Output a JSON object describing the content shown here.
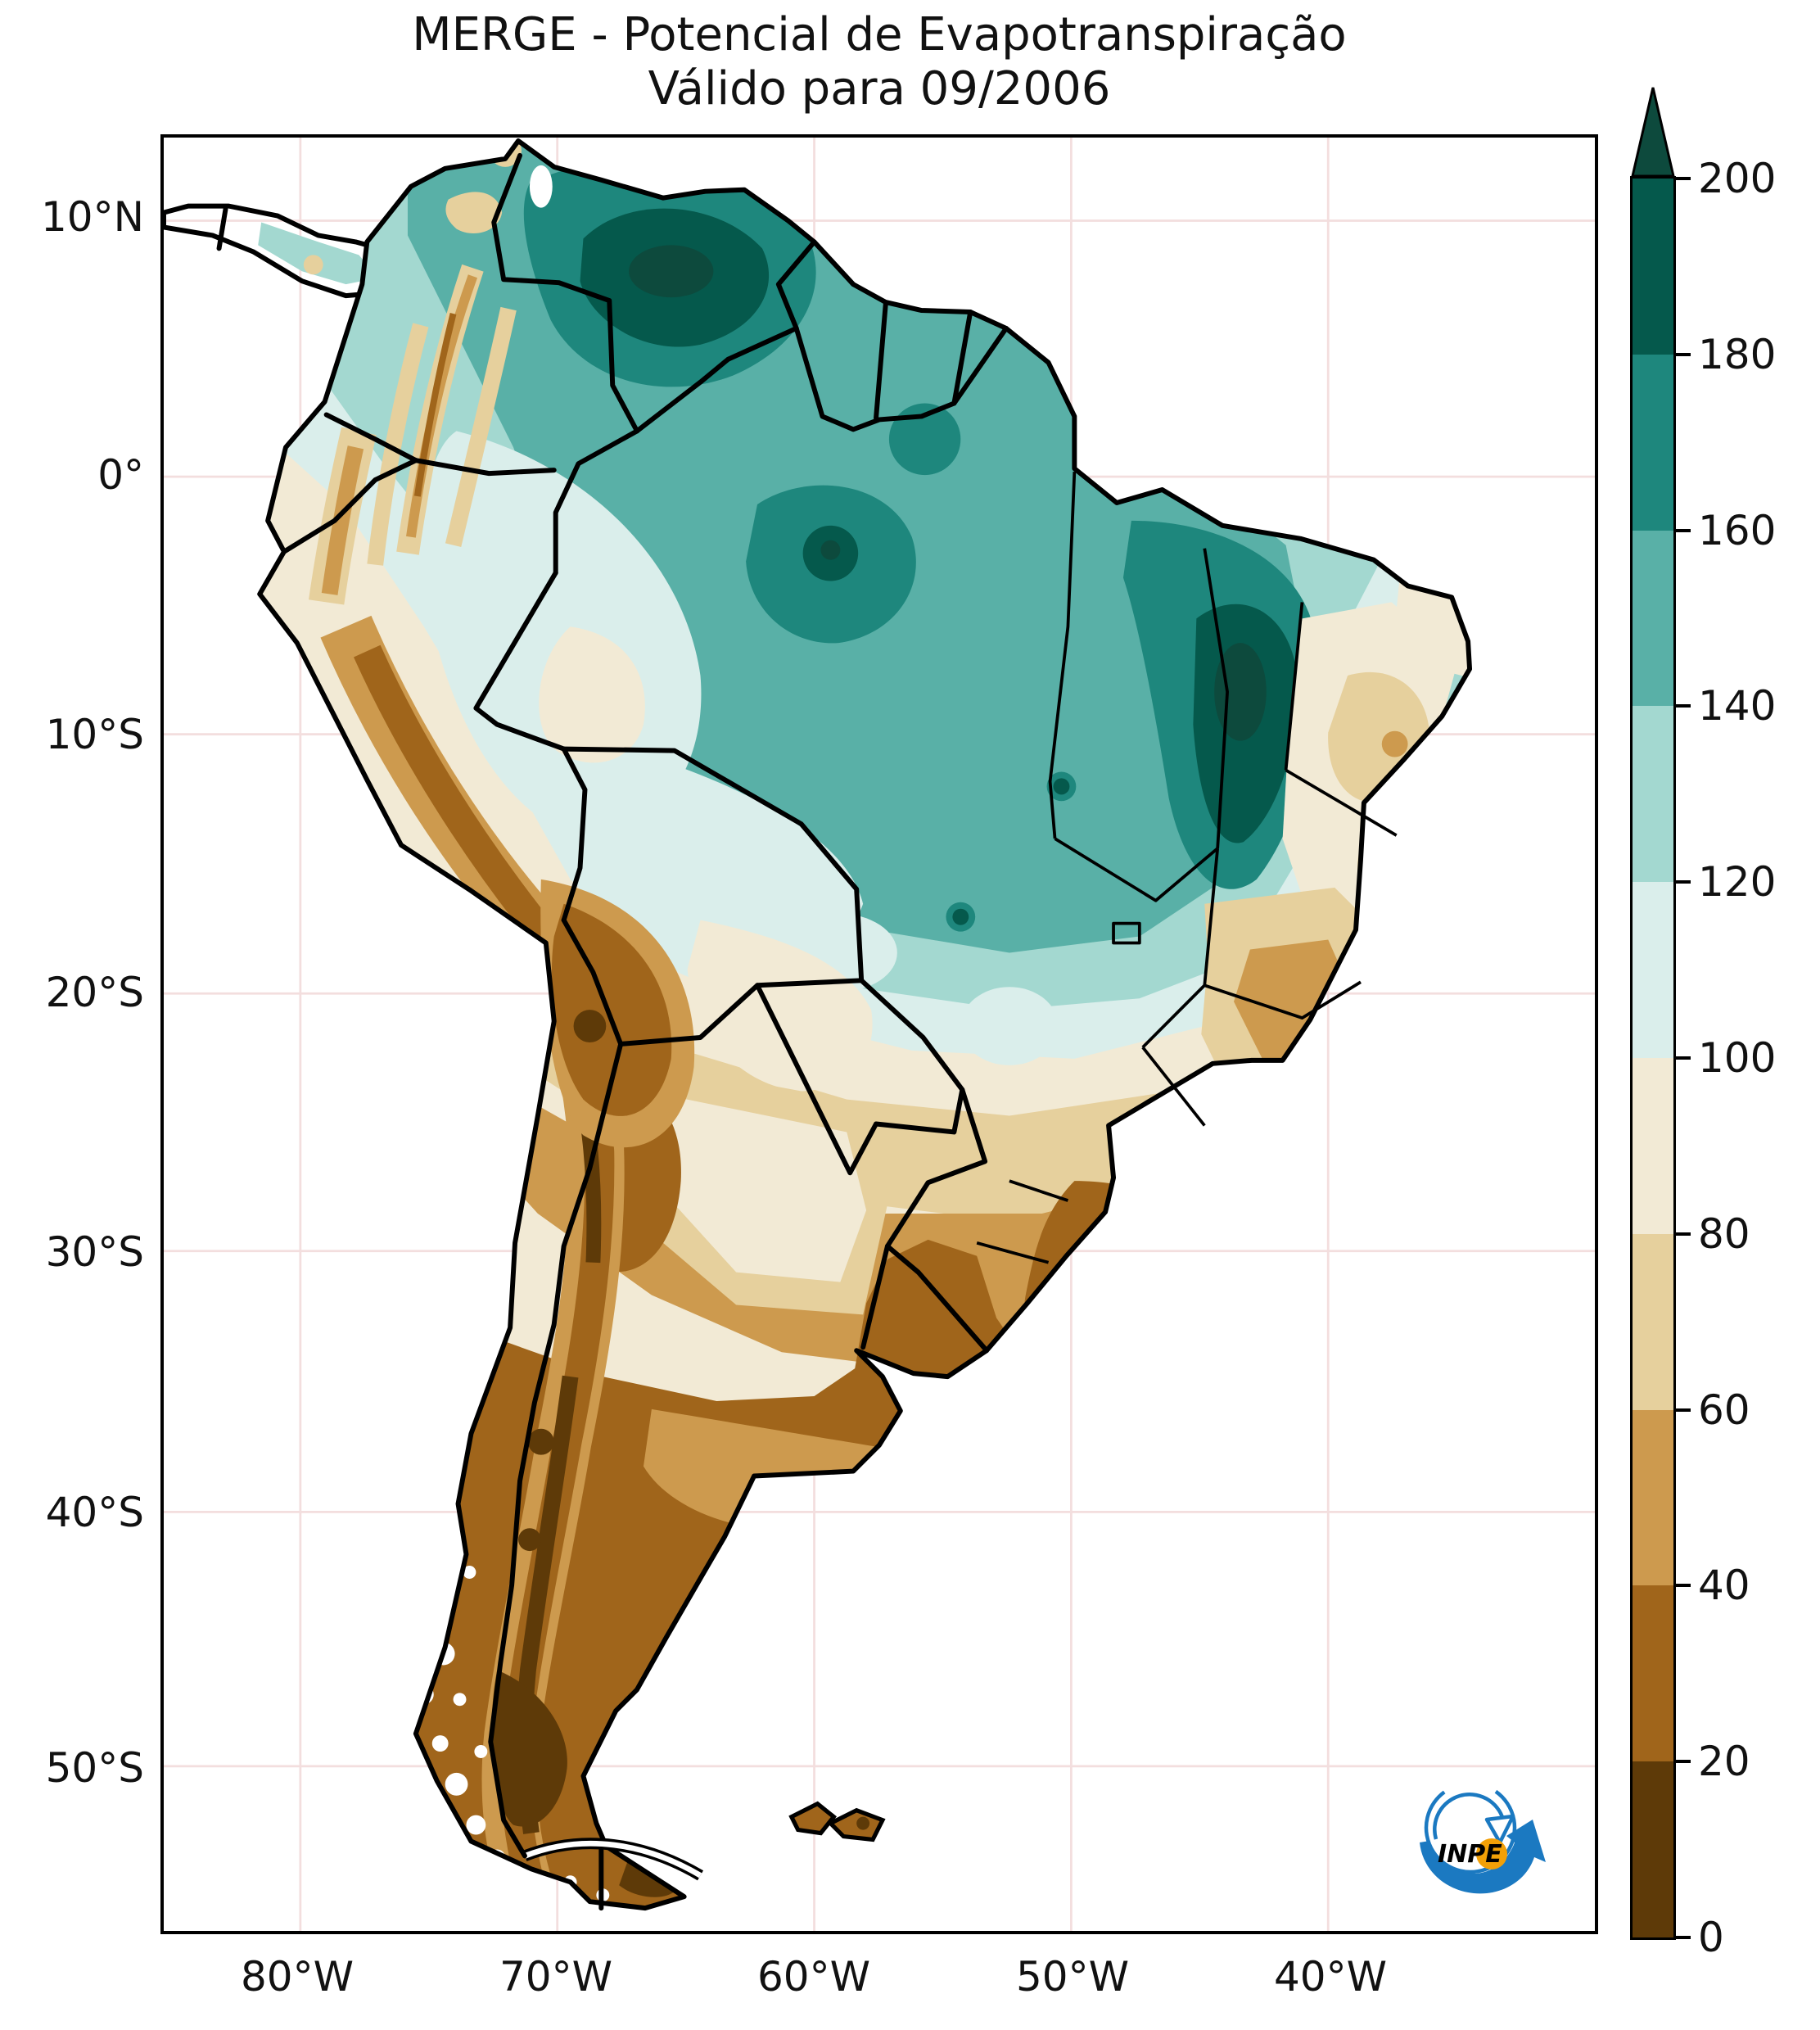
{
  "title": "MERGE - Potencial de Evapotranspiração",
  "subtitle": "Válido para 09/2006",
  "y_axis": {
    "ticks": [
      "10°N",
      "0°",
      "10°S",
      "20°S",
      "30°S",
      "40°S",
      "50°S"
    ]
  },
  "x_axis": {
    "ticks": [
      "80°W",
      "70°W",
      "60°W",
      "50°W",
      "40°W"
    ]
  },
  "colorbar": {
    "tick_labels": [
      "0",
      "20",
      "40",
      "60",
      "80",
      "100",
      "120",
      "140",
      "160",
      "180",
      "200"
    ]
  },
  "logo": {
    "label": "INPE",
    "blue": "#1b79c1",
    "orange": "#f2a007"
  },
  "chart_data": {
    "type": "heatmap",
    "title": "MERGE - Potencial de Evapotranspiração",
    "subtitle": "Válido para 09/2006",
    "product": "MERGE",
    "variable": "Potencial de Evapotranspiração",
    "valid_for": "09/2006",
    "region": "South America",
    "projection_extent": {
      "lon_min": -85.3,
      "lon_max": -29.6,
      "lat_min": -56.4,
      "lat_max": 13.3
    },
    "x_axis": {
      "tick_labels": [
        "80°W",
        "70°W",
        "60°W",
        "50°W",
        "40°W"
      ],
      "tick_values": [
        -80,
        -70,
        -60,
        -50,
        -40
      ]
    },
    "y_axis": {
      "tick_labels": [
        "10°N",
        "0°",
        "10°S",
        "20°S",
        "30°S",
        "40°S",
        "50°S"
      ],
      "tick_values": [
        10,
        0,
        -10,
        -20,
        -30,
        -40,
        -50
      ]
    },
    "grid": true,
    "legend_position": "right-colorbar",
    "colorbar": {
      "levels": [
        0,
        20,
        40,
        60,
        80,
        100,
        120,
        140,
        160,
        180,
        200
      ],
      "extend": "max",
      "colors": [
        "#5e3a08",
        "#a0651b",
        "#cd9a4e",
        "#e6d09d",
        "#f2ead5",
        "#daeeeb",
        "#a3d8d0",
        "#59b0a7",
        "#1e877d",
        "#05594c"
      ],
      "extend_color": "#0d4a3d"
    },
    "observed_values": [
      {
        "region": "Southern Venezuela / Guiana Highlands",
        "range": "160-200+"
      },
      {
        "region": "Central Amazon (Brazil)",
        "range": "140-200"
      },
      {
        "region": "Maranhão-Tocantins (northeastern Brazil)",
        "range": "160-200"
      },
      {
        "region": "Guianas coast (Guyana/Suriname/French Guiana)",
        "range": "140-180"
      },
      {
        "region": "Western Amazon / eastern Peru lowlands",
        "range": "100-120"
      },
      {
        "region": "Andes cordillera (Colombia to Chile)",
        "range": "0-60"
      },
      {
        "region": "East-central Brazil plateau (Minas Gerais)",
        "range": "40-80"
      },
      {
        "region": "Northeast Brazil interior",
        "range": "60-100"
      },
      {
        "region": "Paraguay / Chaco",
        "range": "80-100"
      },
      {
        "region": "Southern Brazil / Uruguay / Pampas",
        "range": "20-60"
      },
      {
        "region": "Patagonia and Tierra del Fuego",
        "range": "0-40"
      }
    ]
  }
}
